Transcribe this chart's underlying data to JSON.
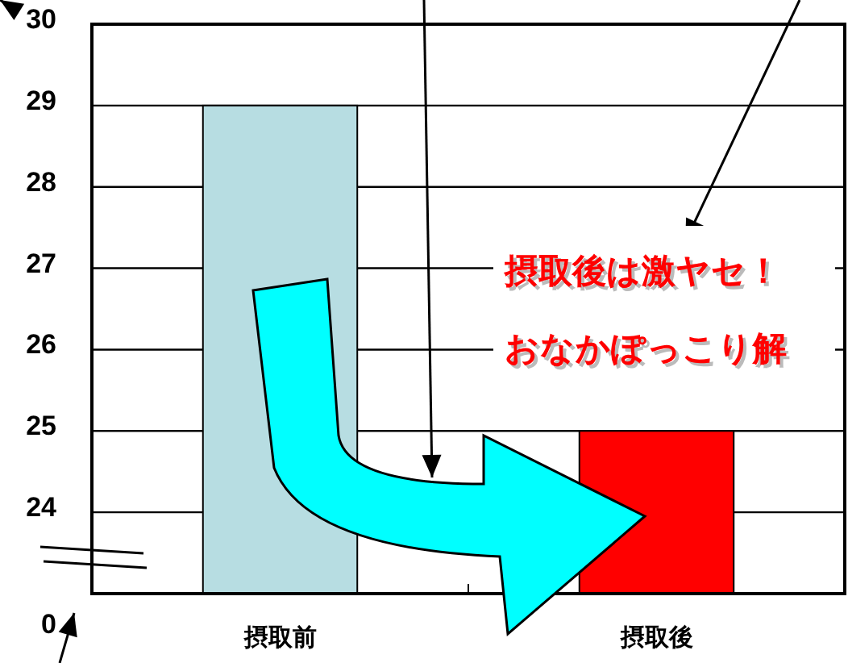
{
  "chart_data": {
    "type": "bar",
    "categories": [
      "摂取前",
      "摂取後"
    ],
    "series": [
      {
        "colors": [
          "#b7dde2",
          "#ff0000"
        ],
        "values": [
          29,
          25
        ]
      }
    ],
    "ylim": [
      23,
      30
    ],
    "yticks": [
      24,
      25,
      26,
      27,
      28,
      29,
      30
    ],
    "grid": "y",
    "annotations": [
      "摂取後は激ヤセ！",
      "おなかぽっこり解",
      "0"
    ]
  }
}
